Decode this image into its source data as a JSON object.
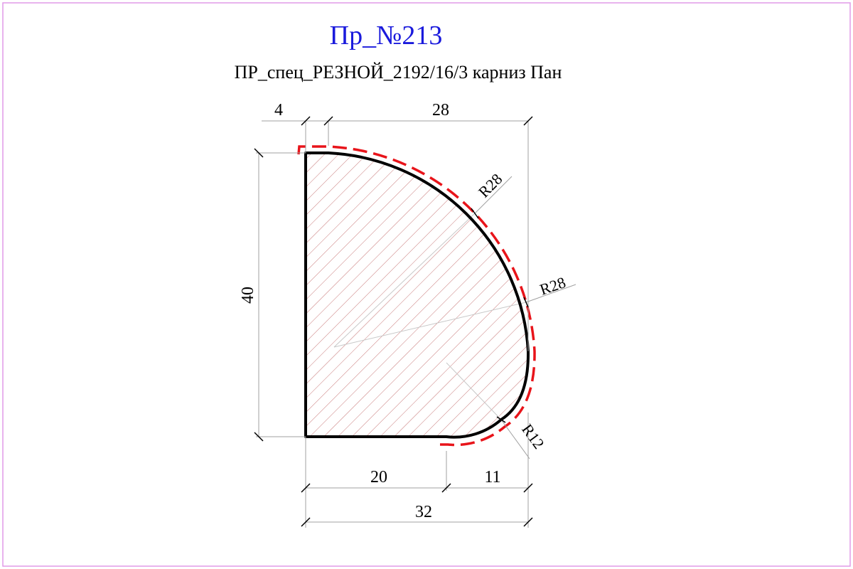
{
  "title": "Пр_№213",
  "subtitle": "ПР_спец_РЕЗНОЙ_2192/16/3 карниз Пан",
  "colors": {
    "title": "#1a1adc",
    "border": "#e09ae8",
    "outline": "#000000",
    "cut_line": "#e8141a",
    "hatch": "#c87878",
    "dimension": "#a0a0a0",
    "guide": "#c8c8c8"
  },
  "dimensions": {
    "top_left": "4",
    "top_right": "28",
    "height": "40",
    "bottom_left": "20",
    "bottom_right": "11",
    "bottom_total": "32"
  },
  "radii": {
    "upper": "R28",
    "middle": "R28",
    "lower": "R12"
  }
}
